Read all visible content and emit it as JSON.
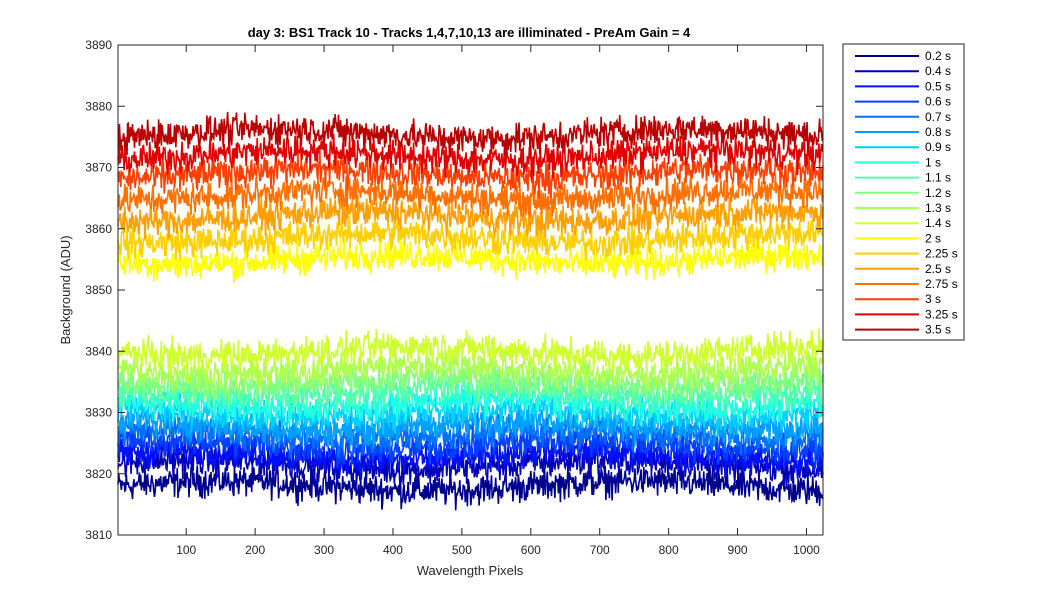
{
  "chart_data": {
    "type": "line",
    "title": "day 3: BS1  Track 10 - Tracks 1,4,7,10,13 are illiminated - PreAm Gain = 4",
    "xlabel": "Wavelength Pixels",
    "ylabel": "Background (ADU)",
    "xlim": [
      1,
      1024
    ],
    "ylim": [
      3810,
      3890
    ],
    "xticks": [
      100,
      200,
      300,
      400,
      500,
      600,
      700,
      800,
      900,
      1000
    ],
    "yticks": [
      3810,
      3820,
      3830,
      3840,
      3850,
      3860,
      3870,
      3880,
      3890
    ],
    "legend_position": "outside-right",
    "n_points": 1024,
    "noise_amplitude": 2.5,
    "series": [
      {
        "name": "0.2 s",
        "mean": 3818.0,
        "color": "#00008f"
      },
      {
        "name": "0.4 s",
        "mean": 3821.5,
        "color": "#0000b8"
      },
      {
        "name": "0.5 s",
        "mean": 3823.0,
        "color": "#0010ff"
      },
      {
        "name": "0.6 s",
        "mean": 3824.8,
        "color": "#0040ff"
      },
      {
        "name": "0.7 s",
        "mean": 3826.5,
        "color": "#0070ff"
      },
      {
        "name": "0.8 s",
        "mean": 3828.0,
        "color": "#00a0ff"
      },
      {
        "name": "0.9 s",
        "mean": 3830.0,
        "color": "#00d0ff"
      },
      {
        "name": "1 s",
        "mean": 3831.5,
        "color": "#20ffe0"
      },
      {
        "name": "1.1 s",
        "mean": 3833.5,
        "color": "#50ffaf"
      },
      {
        "name": "1.2 s",
        "mean": 3835.0,
        "color": "#80ff80"
      },
      {
        "name": "1.3 s",
        "mean": 3837.0,
        "color": "#afff50"
      },
      {
        "name": "1.4 s",
        "mean": 3840.0,
        "color": "#d0ff30"
      },
      {
        "name": "2 s",
        "mean": 3855.0,
        "color": "#ffff00"
      },
      {
        "name": "2.25 s",
        "mean": 3858.5,
        "color": "#ffd000"
      },
      {
        "name": "2.5 s",
        "mean": 3862.0,
        "color": "#ffa000"
      },
      {
        "name": "2.75 s",
        "mean": 3865.5,
        "color": "#ff7000"
      },
      {
        "name": "3 s",
        "mean": 3869.0,
        "color": "#ff4000"
      },
      {
        "name": "3.25 s",
        "mean": 3872.0,
        "color": "#e00000"
      },
      {
        "name": "3.5 s",
        "mean": 3875.5,
        "color": "#b80000"
      }
    ]
  }
}
